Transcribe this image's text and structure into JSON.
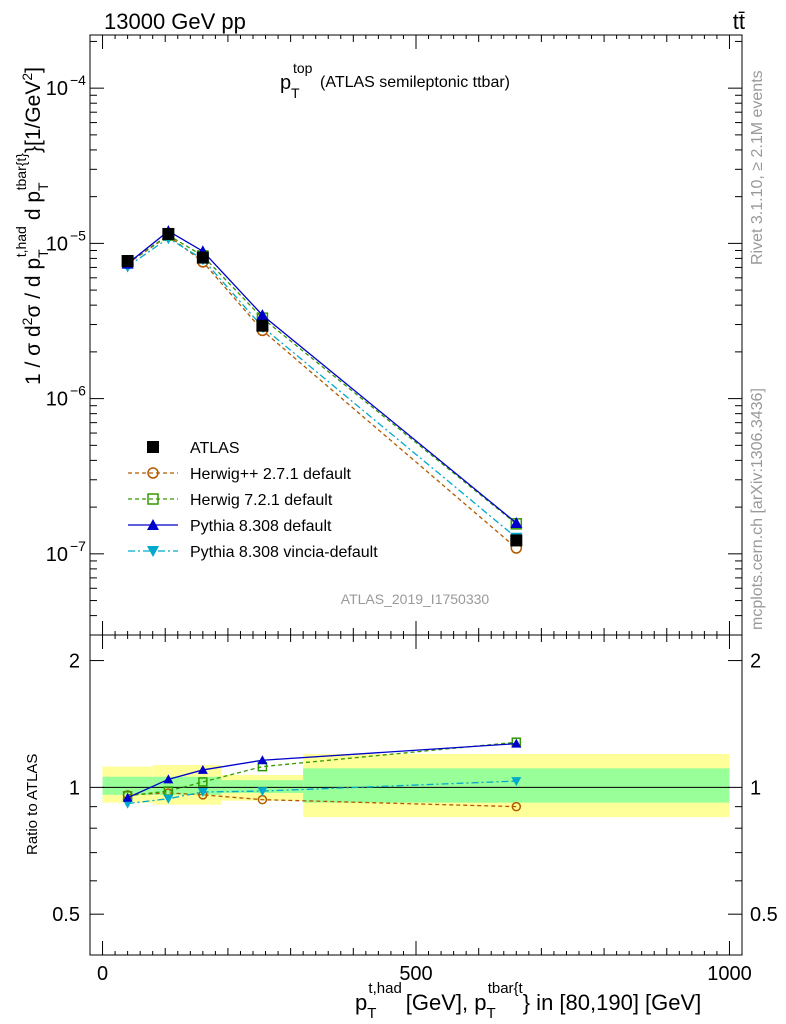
{
  "header": {
    "left": "13000 GeV pp",
    "right": "tt̄"
  },
  "side": {
    "rivet": "Rivet 3.1.10, ≥ 2.1M events",
    "mcplots": "mcplots.cern.ch [arXiv:1306.3436]"
  },
  "analysis_id": "ATLAS_2019_I1750330",
  "colors": {
    "atlas": "#000000",
    "herwigpp": "#b35900",
    "herwig7": "#339900",
    "pythia": "#0000cc",
    "vincia": "#00aacc",
    "band_outer": "#ffff99",
    "band_inner": "#99ff99"
  },
  "chart_data": [
    {
      "type": "line",
      "title_main": "p",
      "title_sub": "T",
      "title_sup": "top",
      "title_rest": "(ATLAS semileptonic ttbar)",
      "y_scale": "log",
      "ylim": [
        3e-08,
        0.00022
      ],
      "xlim": [
        -20,
        1020
      ],
      "ylabel": "1 / σ d²σ / d p_T^{t,had} d p_T^{tbar{t}} [1/GeV²]",
      "ylabel_parts": {
        "a": "1 / σ d",
        "b": "2",
        "c": "σ / d p",
        "d": "T",
        "e": "t,had",
        "f": "d p",
        "g": "T",
        "h": "tbar{t}",
        "i": "}[1/GeV",
        "j": "2",
        "k": "]"
      },
      "ytick_labels": [
        {
          "base": "10",
          "exp": "−7",
          "value": 1e-07
        },
        {
          "base": "10",
          "exp": "−6",
          "value": 1e-06
        },
        {
          "base": "10",
          "exp": "−5",
          "value": 1e-05
        },
        {
          "base": "10",
          "exp": "−4",
          "value": 0.0001
        }
      ],
      "legend_position": "lower-left",
      "x": [
        40,
        105,
        160,
        255,
        660
      ],
      "series": [
        {
          "name": "ATLAS",
          "marker": "square-filled",
          "line": "none",
          "color": "#000000",
          "values": [
            7.7e-06,
            1.15e-05,
            8.1e-06,
            2.95e-06,
            1.22e-07
          ]
        },
        {
          "name": "Herwig++ 2.7.1 default",
          "marker": "circle-open",
          "line": "dashed",
          "color": "#b35900",
          "values": [
            7.4e-06,
            1.12e-05,
            7.6e-06,
            2.75e-06,
            1.09e-07
          ]
        },
        {
          "name": "Herwig 7.2.1 default",
          "marker": "square-open",
          "line": "dashed",
          "color": "#339900",
          "values": [
            7.5e-06,
            1.13e-05,
            8.3e-06,
            3.3e-06,
            1.56e-07
          ]
        },
        {
          "name": "Pythia 8.308 default",
          "marker": "triangle-up",
          "line": "solid",
          "color": "#0000cc",
          "values": [
            7.4e-06,
            1.2e-05,
            8.9e-06,
            3.45e-06,
            1.58e-07
          ]
        },
        {
          "name": "Pythia 8.308 vincia-default",
          "marker": "triangle-down",
          "line": "dashdot",
          "color": "#00aacc",
          "values": [
            7.1e-06,
            1.08e-05,
            7.9e-06,
            2.9e-06,
            1.27e-07
          ]
        }
      ]
    },
    {
      "type": "line",
      "ylabel": "Ratio to ATLAS",
      "y_scale": "log",
      "ylim": [
        0.4,
        2.3
      ],
      "xlim": [
        -20,
        1020
      ],
      "ytick_labels": [
        "0.5",
        "1",
        "2"
      ],
      "ytick_values": [
        0.5,
        1,
        2
      ],
      "xlabel_parts": {
        "p1": "p",
        "s1": "T",
        "u1": "t,had",
        "m": "[GeV], p",
        "s2": "T",
        "u2": "tbar{t",
        "r": "} in [80,190] [GeV]"
      },
      "xticks": [
        0,
        500,
        1000
      ],
      "xtick_labels": [
        "0",
        "500",
        "1000"
      ],
      "bands": [
        {
          "x": [
            0,
            80
          ],
          "outer": [
            0.92,
            1.12
          ],
          "inner": [
            0.96,
            1.06
          ]
        },
        {
          "x": [
            80,
            190
          ],
          "outer": [
            0.91,
            1.13
          ],
          "inner": [
            0.96,
            1.06
          ]
        },
        {
          "x": [
            190,
            320
          ],
          "outer": [
            0.93,
            1.07
          ],
          "inner": [
            0.97,
            1.04
          ]
        },
        {
          "x": [
            320,
            1000
          ],
          "outer": [
            0.85,
            1.2
          ],
          "inner": [
            0.92,
            1.11
          ]
        }
      ],
      "x": [
        40,
        105,
        160,
        255,
        660
      ],
      "series": [
        {
          "name": "Herwig++ 2.7.1 default",
          "marker": "circle-open",
          "line": "dashed",
          "color": "#b35900",
          "values": [
            0.96,
            0.97,
            0.96,
            0.935,
            0.9
          ]
        },
        {
          "name": "Herwig 7.2.1 default",
          "marker": "square-open",
          "line": "dashed",
          "color": "#339900",
          "values": [
            0.955,
            0.98,
            1.03,
            1.12,
            1.28
          ]
        },
        {
          "name": "Pythia 8.308 default",
          "marker": "triangle-up",
          "line": "solid",
          "color": "#0000cc",
          "values": [
            0.945,
            1.045,
            1.1,
            1.16,
            1.27
          ]
        },
        {
          "name": "Pythia 8.308 vincia-default",
          "marker": "triangle-down",
          "line": "dashdot",
          "color": "#00aacc",
          "values": [
            0.915,
            0.94,
            0.975,
            0.98,
            1.035
          ]
        }
      ]
    }
  ]
}
